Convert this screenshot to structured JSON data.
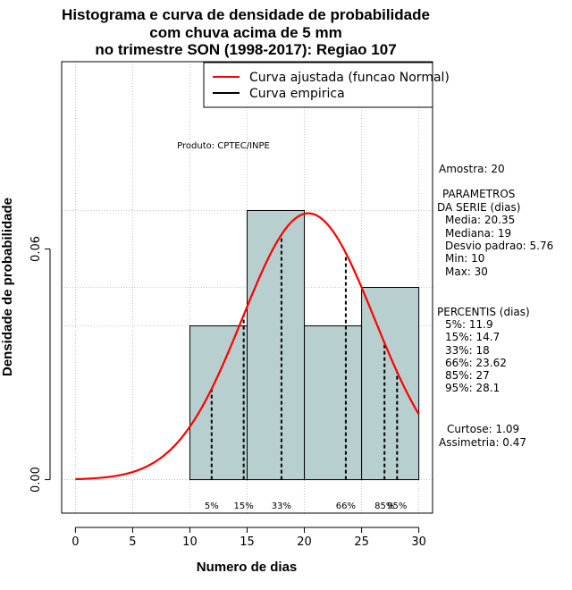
{
  "chart_data": {
    "type": "bar",
    "title_lines": [
      "Histograma e curva de densidade de probabilidade",
      "com chuva acima de 5 mm",
      "no trimestre SON (1998-2017): Regiao 107"
    ],
    "xlabel": "Numero de dias",
    "ylabel": "Densidade de probabilidade",
    "xlim": [
      -1.2,
      31.2
    ],
    "ylim": [
      -0.0087,
      0.1087
    ],
    "x_ticks": [
      0,
      5,
      10,
      15,
      20,
      25,
      30
    ],
    "x_tick_labels": [
      "0",
      "5",
      "10",
      "15",
      "20",
      "25",
      "30"
    ],
    "y_ticks": [
      0.0,
      0.06
    ],
    "y_tick_labels": [
      "0.00",
      "0.06"
    ],
    "grid": true,
    "bars": [
      {
        "x0": 10,
        "x1": 15,
        "value": 0.04
      },
      {
        "x0": 15,
        "x1": 20,
        "value": 0.07
      },
      {
        "x0": 20,
        "x1": 25,
        "value": 0.04
      },
      {
        "x0": 25,
        "x1": 30,
        "value": 0.05
      }
    ],
    "bar_color": "#b7cfcf",
    "curve": {
      "name": "Curva ajustada (funcao Normal)",
      "mean": 20.35,
      "sd": 5.76,
      "x_from": 0,
      "x_to": 30,
      "color": "#ff0000"
    },
    "empirical_name": "Curva empirica",
    "legend_position": "top-right",
    "percentiles": [
      {
        "label": "5%",
        "value": 11.9
      },
      {
        "label": "15%",
        "value": 14.7
      },
      {
        "label": "33%",
        "value": 18
      },
      {
        "label": "66%",
        "value": 23.62
      },
      {
        "label": "85%",
        "value": 27
      },
      {
        "label": "95%",
        "value": 28.1
      }
    ],
    "annotation": "Produto: CPTEC/INPE"
  },
  "side_panel": {
    "amostra": "Amostra: 20",
    "params_title_1": "PARAMETROS",
    "params_title_2": "DA SERIE (dias)",
    "params": [
      "Media: 20.35",
      "Mediana: 19",
      "Desvio padrao: 5.76",
      "Min: 10",
      "Max: 30"
    ],
    "percentis_title": "PERCENTIS (dias)",
    "percentis": [
      "5%: 11.9",
      "15%: 14.7",
      "33%: 18",
      "66%: 23.62",
      "85%: 27",
      "95%: 28.1"
    ],
    "curtose": "Curtose: 1.09",
    "assimetria": "Assimetria: 0.47"
  }
}
